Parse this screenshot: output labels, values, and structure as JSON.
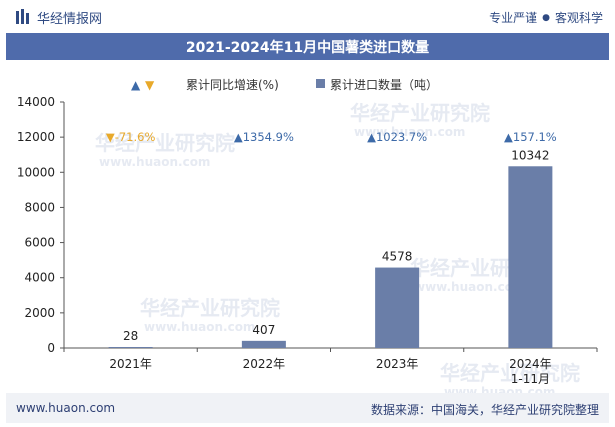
{
  "header": {
    "brand": "华经情报网",
    "slogan_left": "专业严谨",
    "slogan_right": "客观科学"
  },
  "title": "2021-2024年11月中国薯类进口数量",
  "legend": {
    "growth_label": "累计同比增速(%)",
    "quantity_label": "累计进口数量（吨）"
  },
  "chart_data": {
    "type": "bar",
    "title": "2021-2024年11月中国薯类进口数量",
    "categories": [
      "2021年",
      "2022年",
      "2023年",
      "2024年\n1-11月"
    ],
    "series": [
      {
        "name": "累计进口数量（吨）",
        "values": [
          28,
          407,
          4578,
          10342
        ],
        "color": "#6a7ea8"
      },
      {
        "name": "累计同比增速(%)",
        "values": [
          -71.6,
          1354.9,
          1023.7,
          157.1
        ]
      }
    ],
    "growth_labels": [
      "-71.6%",
      "1354.9%",
      "1023.7%",
      "157.1%"
    ],
    "ylim": [
      0,
      14000
    ],
    "yticks": [
      0,
      2000,
      4000,
      6000,
      8000,
      10000,
      12000,
      14000
    ],
    "up_color": "#3d6aa8",
    "down_color": "#e8a92a"
  },
  "watermarks": [
    "华经产业研究院",
    "www.huaon.com"
  ],
  "footer": {
    "url": "www.huaon.com",
    "source": "数据来源：中国海关，华经产业研究院整理"
  }
}
